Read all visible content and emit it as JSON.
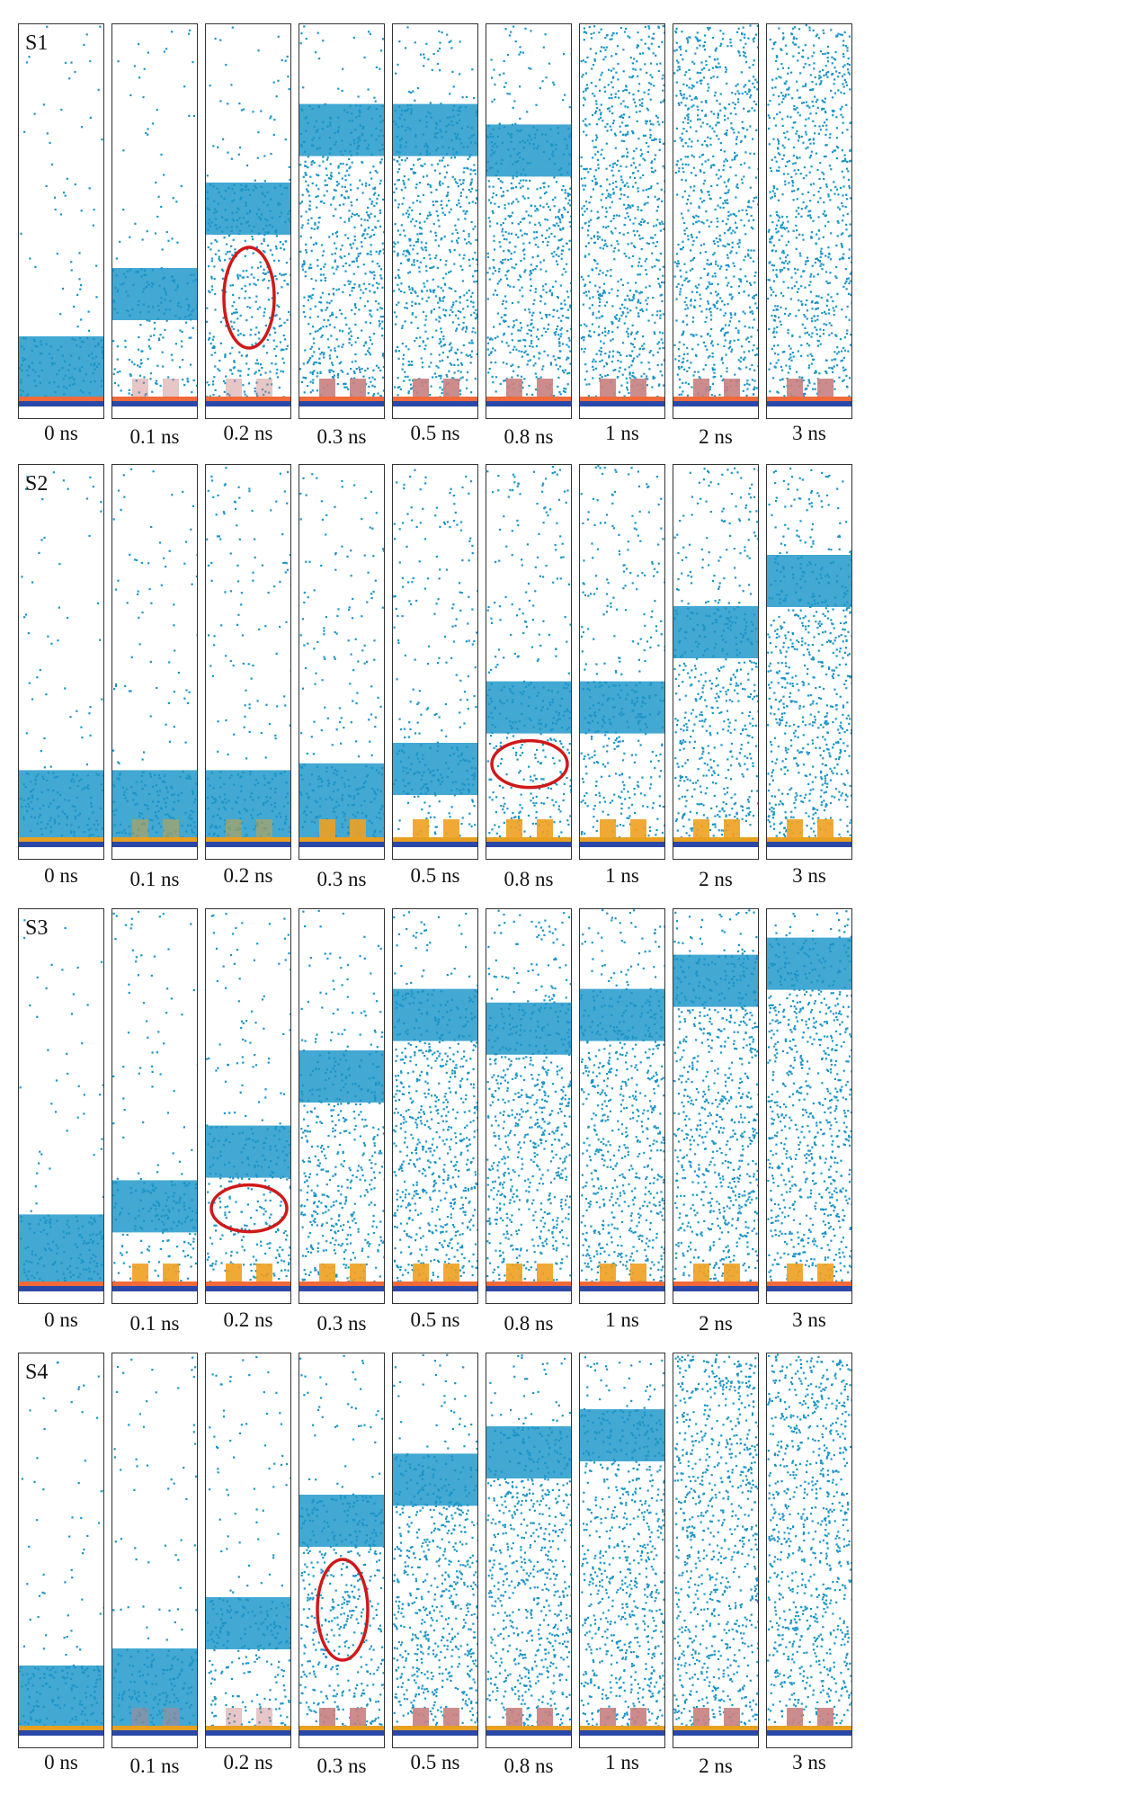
{
  "figure": {
    "times": [
      "0 ns",
      "0.1 ns",
      "0.2 ns",
      "0.3 ns",
      "0.5 ns",
      "0.8 ns",
      "1 ns",
      "2 ns",
      "3 ns"
    ],
    "rows": [
      {
        "label": "S1",
        "nanostructure_color": "#c88080",
        "substrate_colors": [
          "#f06a3a",
          "#2a48a8"
        ],
        "density_band_level": [
          0.1,
          0.3,
          0.55,
          0.78,
          0.78,
          0.72,
          1.0,
          1.0,
          1.0
        ],
        "bubble_marker_frame": "0.2 ns"
      },
      {
        "label": "S2",
        "nanostructure_color": "#f0a020",
        "substrate_colors": [
          "#e8a020",
          "#2a48a8"
        ],
        "density_band_level": [
          0.12,
          0.12,
          0.12,
          0.14,
          0.2,
          0.38,
          0.38,
          0.6,
          0.75
        ],
        "bubble_marker_frame": "0.8 ns"
      },
      {
        "label": "S3",
        "nanostructure_color": "#f0a020",
        "substrate_colors": [
          "#f06a3a",
          "#2a48a8"
        ],
        "density_band_level": [
          0.12,
          0.22,
          0.38,
          0.6,
          0.78,
          0.74,
          0.78,
          0.88,
          0.93
        ],
        "bubble_marker_frame": "0.2 ns"
      },
      {
        "label": "S4",
        "nanostructure_color": "#c88080",
        "substrate_colors": [
          "#e8a020",
          "#2a48a8"
        ],
        "density_band_level": [
          0.1,
          0.15,
          0.3,
          0.6,
          0.72,
          0.8,
          0.85,
          1.0,
          1.0
        ],
        "bubble_marker_frame": "0.3 ns"
      }
    ],
    "colors": {
      "water": "#1a95c8",
      "marker": "#d01818",
      "frame": "#333333"
    }
  }
}
